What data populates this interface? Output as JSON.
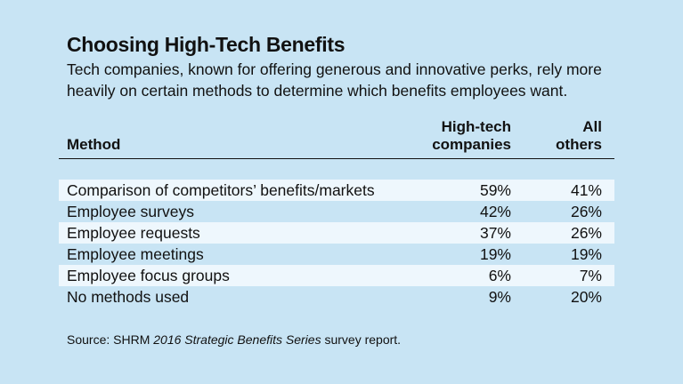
{
  "title": "Choosing High-Tech Benefits",
  "subtitle": "Tech companies, known for offering generous and innovative perks, rely more heavily on certain methods to determine which benefits employees want.",
  "colors": {
    "background": "#c8e4f4",
    "row_shade": "#eef7fd",
    "text": "#111111"
  },
  "chart_data": {
    "type": "table",
    "columns": {
      "method": "Method",
      "high_tech": [
        "High-tech",
        "companies"
      ],
      "all_others": [
        "All",
        "others"
      ]
    },
    "rows": [
      {
        "method": "Comparison of competitors’ benefits/markets",
        "high_tech": "59%",
        "all_others": "41%"
      },
      {
        "method": "Employee surveys",
        "high_tech": "42%",
        "all_others": "26%"
      },
      {
        "method": "Employee requests",
        "high_tech": "37%",
        "all_others": "26%"
      },
      {
        "method": "Employee meetings",
        "high_tech": "19%",
        "all_others": "19%"
      },
      {
        "method": "Employee focus groups",
        "high_tech": "6%",
        "all_others": "7%"
      },
      {
        "method": "No methods used",
        "high_tech": "9%",
        "all_others": "20%"
      }
    ]
  },
  "source": {
    "prefix": "Source: SHRM ",
    "italic": "2016 Strategic Benefits Series",
    "suffix": " survey report."
  }
}
